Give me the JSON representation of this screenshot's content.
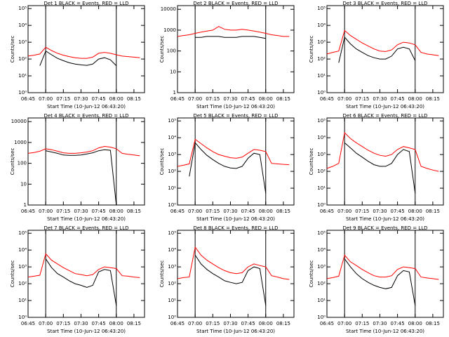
{
  "chart_data": [
    {
      "type": "line",
      "title": "Det 1 BLACK = Events, RED = LLD",
      "xlabel": "Start Time (10-Jun-12 06:43:20)",
      "ylabel": "Counts/sec",
      "log_y": true,
      "x": [
        "06:45",
        "06:50",
        "06:55",
        "07:00",
        "07:05",
        "07:10",
        "07:15",
        "07:20",
        "07:25",
        "07:30",
        "07:35",
        "07:40",
        "07:45",
        "07:50",
        "07:55",
        "08:00",
        "08:05",
        "08:10",
        "08:15",
        "08:20"
      ],
      "series": [
        {
          "color": "#ff0000",
          "values": [
            150,
            170,
            200,
            500,
            320,
            220,
            170,
            140,
            120,
            110,
            110,
            130,
            220,
            250,
            220,
            180,
            150,
            140,
            130,
            120
          ]
        },
        {
          "color": "#000000",
          "values": [
            null,
            null,
            40,
            300,
            180,
            110,
            80,
            60,
            50,
            45,
            42,
            50,
            100,
            120,
            90,
            40,
            null,
            null,
            null,
            null
          ]
        }
      ],
      "xlim": [
        "06:45",
        "08:24"
      ],
      "xticks": [
        "06:45",
        "07:00",
        "07:15",
        "07:30",
        "07:45",
        "08:00",
        "08:15"
      ],
      "ylim": [
        1,
        150000
      ],
      "yticks": [
        {
          "value": 1,
          "label": "10⁰"
        },
        {
          "value": 10,
          "label": "10¹"
        },
        {
          "value": 100,
          "label": "10²"
        },
        {
          "value": 1000,
          "label": "10³"
        },
        {
          "value": 10000,
          "label": "10⁴"
        },
        {
          "value": 100000,
          "label": "10⁵"
        }
      ],
      "vlines": [
        "07:00",
        "08:00"
      ]
    },
    {
      "type": "line",
      "title": "Det 2 BLACK = Events, RED = LLD",
      "xlabel": "Start Time (10-Jun-12 06:43:20)",
      "ylabel": "Counts/sec",
      "log_y": true,
      "x": [
        "06:45",
        "06:50",
        "06:55",
        "07:00",
        "07:05",
        "07:10",
        "07:15",
        "07:20",
        "07:25",
        "07:30",
        "07:35",
        "07:40",
        "07:45",
        "07:50",
        "07:55",
        "08:00",
        "08:05",
        "08:10",
        "08:15",
        "08:20"
      ],
      "series": [
        {
          "color": "#ff0000",
          "values": [
            500,
            550,
            600,
            700,
            800,
            900,
            1000,
            1500,
            1100,
            1000,
            1000,
            1100,
            1000,
            900,
            800,
            700,
            600,
            550,
            500,
            500
          ]
        },
        {
          "color": "#000000",
          "values": [
            null,
            null,
            null,
            450,
            450,
            500,
            500,
            500,
            450,
            450,
            450,
            500,
            500,
            500,
            450,
            400,
            null,
            null,
            null,
            null
          ]
        }
      ],
      "xlim": [
        "06:45",
        "08:24"
      ],
      "xticks": [
        "06:45",
        "07:00",
        "07:15",
        "07:30",
        "07:45",
        "08:00",
        "08:15"
      ],
      "ylim": [
        1,
        15000
      ],
      "yticks": [
        1,
        10,
        100,
        1000,
        10000
      ],
      "vlines": [
        "07:00",
        "08:00"
      ]
    },
    {
      "type": "line",
      "title": "Det 3 BLACK = Events, RED = LLD",
      "xlabel": "Start Time (10-Jun-12 06:43:20)",
      "ylabel": "Counts/sec",
      "log_y": true,
      "x": [
        "06:45",
        "06:50",
        "06:55",
        "07:00",
        "07:05",
        "07:10",
        "07:15",
        "07:20",
        "07:25",
        "07:30",
        "07:35",
        "07:40",
        "07:45",
        "07:50",
        "07:55",
        "08:00",
        "08:05",
        "08:10",
        "08:15",
        "08:20"
      ],
      "series": [
        {
          "color": "#ff0000",
          "values": [
            200,
            250,
            300,
            5000,
            2500,
            1500,
            900,
            600,
            400,
            300,
            280,
            350,
            700,
            1000,
            900,
            700,
            250,
            200,
            180,
            160
          ]
        },
        {
          "color": "#000000",
          "values": [
            null,
            null,
            60,
            2000,
            800,
            400,
            250,
            160,
            120,
            100,
            100,
            150,
            400,
            500,
            400,
            80,
            null,
            null,
            null,
            null
          ]
        }
      ],
      "xlim": [
        "06:45",
        "08:24"
      ],
      "xticks": [
        "06:45",
        "07:00",
        "07:15",
        "07:30",
        "07:45",
        "08:00",
        "08:15"
      ],
      "ylim": [
        1,
        150000
      ],
      "yticks": [
        {
          "value": 1,
          "label": "10⁰"
        },
        {
          "value": 10,
          "label": "10¹"
        },
        {
          "value": 100,
          "label": "10²"
        },
        {
          "value": 1000,
          "label": "10³"
        },
        {
          "value": 10000,
          "label": "10⁴"
        },
        {
          "value": 100000,
          "label": "10⁵"
        }
      ],
      "vlines": [
        "07:00",
        "08:00"
      ]
    },
    {
      "type": "line",
      "title": "Det 4 BLACK = Events, RED = LLD",
      "xlabel": "Start Time (10-Jun-12 06:43:20)",
      "ylabel": "Counts/sec",
      "log_y": true,
      "x": [
        "06:45",
        "06:50",
        "06:55",
        "07:00",
        "07:05",
        "07:10",
        "07:15",
        "07:20",
        "07:25",
        "07:30",
        "07:35",
        "07:40",
        "07:45",
        "07:50",
        "07:55",
        "08:00",
        "08:05",
        "08:10",
        "08:15",
        "08:20"
      ],
      "series": [
        {
          "color": "#ff0000",
          "values": [
            300,
            330,
            380,
            500,
            450,
            380,
            320,
            300,
            300,
            320,
            350,
            400,
            550,
            650,
            600,
            500,
            300,
            270,
            250,
            230
          ]
        },
        {
          "color": "#000000",
          "values": [
            null,
            null,
            null,
            400,
            350,
            300,
            250,
            240,
            240,
            250,
            280,
            320,
            400,
            450,
            420,
            1,
            null,
            null,
            null,
            null
          ]
        }
      ],
      "xlim": [
        "06:45",
        "08:24"
      ],
      "xticks": [
        "06:45",
        "07:00",
        "07:15",
        "07:30",
        "07:45",
        "08:00",
        "08:15"
      ],
      "ylim": [
        1,
        15000
      ],
      "yticks": [
        1,
        10,
        100,
        1000,
        10000
      ],
      "vlines": [
        "07:00",
        "08:00"
      ]
    },
    {
      "type": "line",
      "title": "Det 5 BLACK = Events, RED = LLD",
      "xlabel": "Start Time (10-Jun-12 06:43:20)",
      "ylabel": "Counts/sec",
      "log_y": true,
      "x": [
        "06:45",
        "06:50",
        "06:55",
        "07:00",
        "07:05",
        "07:10",
        "07:15",
        "07:20",
        "07:25",
        "07:30",
        "07:35",
        "07:40",
        "07:45",
        "07:50",
        "07:55",
        "08:00",
        "08:05",
        "08:10",
        "08:15",
        "08:20"
      ],
      "series": [
        {
          "color": "#ff0000",
          "values": [
            200,
            230,
            280,
            8000,
            4500,
            2500,
            1500,
            1000,
            800,
            650,
            600,
            700,
            1200,
            2000,
            1800,
            1500,
            300,
            280,
            260,
            250
          ]
        },
        {
          "color": "#000000",
          "values": [
            null,
            null,
            50,
            5000,
            2000,
            900,
            500,
            300,
            200,
            160,
            150,
            200,
            600,
            1200,
            1000,
            5,
            null,
            null,
            null,
            null
          ]
        }
      ],
      "xlim": [
        "06:45",
        "08:24"
      ],
      "xticks": [
        "06:45",
        "07:00",
        "07:15",
        "07:30",
        "07:45",
        "08:00",
        "08:15"
      ],
      "ylim": [
        1,
        150000
      ],
      "yticks": [
        {
          "value": 1,
          "label": "10⁰"
        },
        {
          "value": 10,
          "label": "10¹"
        },
        {
          "value": 100,
          "label": "10²"
        },
        {
          "value": 1000,
          "label": "10³"
        },
        {
          "value": 10000,
          "label": "10⁴"
        },
        {
          "value": 100000,
          "label": "10⁵"
        }
      ],
      "vlines": [
        "07:00",
        "08:00"
      ]
    },
    {
      "type": "line",
      "title": "Det 6 BLACK = Events, RED = LLD",
      "xlabel": "Start Time (10-Jun-12 06:43:20)",
      "ylabel": "Counts/sec",
      "log_y": true,
      "x": [
        "06:45",
        "06:50",
        "06:55",
        "07:00",
        "07:05",
        "07:10",
        "07:15",
        "07:20",
        "07:25",
        "07:30",
        "07:35",
        "07:40",
        "07:45",
        "07:50",
        "07:55",
        "08:00",
        "08:05",
        "08:10",
        "08:15",
        "08:20"
      ],
      "series": [
        {
          "color": "#ff0000",
          "values": [
            150,
            200,
            300,
            20000,
            9000,
            5000,
            3000,
            1800,
            1200,
            900,
            800,
            1000,
            2000,
            3000,
            2500,
            2000,
            200,
            150,
            120,
            100
          ]
        },
        {
          "color": "#000000",
          "values": [
            null,
            null,
            null,
            5000,
            2500,
            1200,
            700,
            400,
            250,
            200,
            200,
            300,
            1000,
            2000,
            1500,
            5,
            null,
            null,
            null,
            null
          ]
        }
      ],
      "xlim": [
        "06:45",
        "08:24"
      ],
      "xticks": [
        "06:45",
        "07:00",
        "07:15",
        "07:30",
        "07:45",
        "08:00",
        "08:15"
      ],
      "ylim": [
        1,
        150000
      ],
      "yticks": [
        {
          "value": 1,
          "label": "10⁰"
        },
        {
          "value": 10,
          "label": "10¹"
        },
        {
          "value": 100,
          "label": "10²"
        },
        {
          "value": 1000,
          "label": "10³"
        },
        {
          "value": 10000,
          "label": "10⁴"
        },
        {
          "value": 100000,
          "label": "10⁵"
        }
      ],
      "vlines": [
        "07:00",
        "08:00"
      ]
    },
    {
      "type": "line",
      "title": "Det 7 BLACK = Events, RED = LLD",
      "xlabel": "Start Time (10-Jun-12 06:43:20)",
      "ylabel": "Counts/sec",
      "log_y": true,
      "x": [
        "06:45",
        "06:50",
        "06:55",
        "07:00",
        "07:05",
        "07:10",
        "07:15",
        "07:20",
        "07:25",
        "07:30",
        "07:35",
        "07:40",
        "07:45",
        "07:50",
        "07:55",
        "08:00",
        "08:05",
        "08:10",
        "08:15",
        "08:20"
      ],
      "series": [
        {
          "color": "#ff0000",
          "values": [
            250,
            280,
            320,
            6000,
            2500,
            1500,
            900,
            600,
            400,
            350,
            300,
            350,
            700,
            1000,
            900,
            800,
            300,
            280,
            250,
            230
          ]
        },
        {
          "color": "#000000",
          "values": [
            null,
            null,
            null,
            3000,
            900,
            400,
            250,
            150,
            100,
            80,
            60,
            80,
            500,
            700,
            600,
            5,
            null,
            null,
            null,
            null
          ]
        }
      ],
      "xlim": [
        "06:45",
        "08:24"
      ],
      "xticks": [
        "06:45",
        "07:00",
        "07:15",
        "07:30",
        "07:45",
        "08:00",
        "08:15"
      ],
      "ylim": [
        1,
        150000
      ],
      "yticks": [
        {
          "value": 1,
          "label": "10⁰"
        },
        {
          "value": 10,
          "label": "10¹"
        },
        {
          "value": 100,
          "label": "10²"
        },
        {
          "value": 1000,
          "label": "10³"
        },
        {
          "value": 10000,
          "label": "10⁴"
        },
        {
          "value": 100000,
          "label": "10⁵"
        }
      ],
      "vlines": [
        "07:00",
        "08:00"
      ]
    },
    {
      "type": "line",
      "title": "Det 8 BLACK = Events, RED = LLD",
      "xlabel": "Start Time (10-Jun-12 06:43:20)",
      "ylabel": "Counts/sec",
      "log_y": true,
      "x": [
        "06:45",
        "06:50",
        "06:55",
        "07:00",
        "07:05",
        "07:10",
        "07:15",
        "07:20",
        "07:25",
        "07:30",
        "07:35",
        "07:40",
        "07:45",
        "07:50",
        "07:55",
        "08:00",
        "08:05",
        "08:10",
        "08:15",
        "08:20"
      ],
      "series": [
        {
          "color": "#ff0000",
          "values": [
            200,
            230,
            250,
            15000,
            5000,
            2500,
            1500,
            900,
            600,
            450,
            400,
            450,
            1000,
            1500,
            1200,
            1000,
            300,
            250,
            200,
            180
          ]
        },
        {
          "color": "#000000",
          "values": [
            null,
            null,
            null,
            5000,
            1500,
            700,
            400,
            250,
            150,
            120,
            100,
            120,
            600,
            1000,
            800,
            5,
            null,
            null,
            null,
            null
          ]
        }
      ],
      "xlim": [
        "06:45",
        "08:24"
      ],
      "xticks": [
        "06:45",
        "07:00",
        "07:15",
        "07:30",
        "07:45",
        "08:00",
        "08:15"
      ],
      "ylim": [
        1,
        150000
      ],
      "yticks": [
        {
          "value": 1,
          "label": "10⁰"
        },
        {
          "value": 10,
          "label": "10¹"
        },
        {
          "value": 100,
          "label": "10²"
        },
        {
          "value": 1000,
          "label": "10³"
        },
        {
          "value": 10000,
          "label": "10⁴"
        },
        {
          "value": 100000,
          "label": "10⁵"
        }
      ],
      "vlines": [
        "07:00",
        "08:00"
      ]
    },
    {
      "type": "line",
      "title": "Det 9 BLACK = Events, RED = LLD",
      "xlabel": "Start Time (10-Jun-12 06:43:20)",
      "ylabel": "Counts/sec",
      "log_y": true,
      "x": [
        "06:45",
        "06:50",
        "06:55",
        "07:00",
        "07:05",
        "07:10",
        "07:15",
        "07:20",
        "07:25",
        "07:30",
        "07:35",
        "07:40",
        "07:45",
        "07:50",
        "07:55",
        "08:00",
        "08:05",
        "08:10",
        "08:15",
        "08:20"
      ],
      "series": [
        {
          "color": "#ff0000",
          "values": [
            200,
            230,
            280,
            5000,
            2000,
            1200,
            700,
            450,
            300,
            250,
            250,
            300,
            700,
            1000,
            900,
            800,
            250,
            220,
            200,
            180
          ]
        },
        {
          "color": "#000000",
          "values": [
            null,
            null,
            null,
            3000,
            1000,
            400,
            200,
            120,
            80,
            60,
            50,
            60,
            300,
            600,
            500,
            5,
            null,
            null,
            null,
            null
          ]
        }
      ],
      "xlim": [
        "06:45",
        "08:24"
      ],
      "xticks": [
        "06:45",
        "07:00",
        "07:15",
        "07:30",
        "07:45",
        "08:00",
        "08:15"
      ],
      "ylim": [
        1,
        150000
      ],
      "yticks": [
        {
          "value": 1,
          "label": "10⁰"
        },
        {
          "value": 10,
          "label": "10¹"
        },
        {
          "value": 100,
          "label": "10²"
        },
        {
          "value": 1000,
          "label": "10³"
        },
        {
          "value": 10000,
          "label": "10⁴"
        },
        {
          "value": 100000,
          "label": "10⁵"
        }
      ],
      "vlines": [
        "07:00",
        "08:00"
      ]
    }
  ]
}
